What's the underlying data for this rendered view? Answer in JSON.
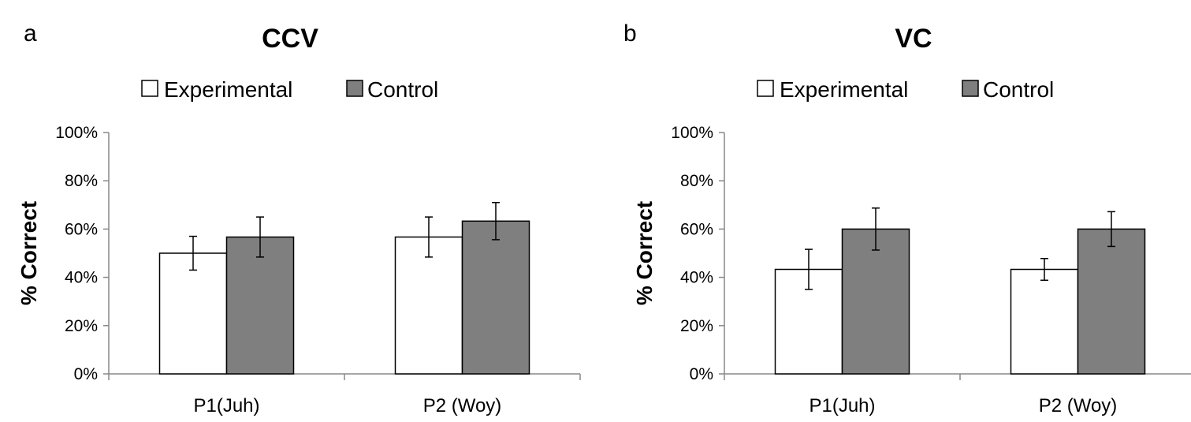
{
  "chart_data": [
    {
      "type": "bar",
      "panel_label": "a",
      "title": "CCV",
      "xlabel": "",
      "ylabel": "% Correct",
      "ylim": [
        0,
        100
      ],
      "yticks": [
        "0%",
        "20%",
        "40%",
        "60%",
        "80%",
        "100%"
      ],
      "categories": [
        "P1(Juh)",
        "P2 (Woy)"
      ],
      "legend_position": "top",
      "series": [
        {
          "name": "Experimental",
          "color": "#ffffff",
          "values": [
            50,
            56.7
          ],
          "error": [
            7,
            8.3
          ]
        },
        {
          "name": "Control",
          "color": "#7f7f7f",
          "values": [
            56.7,
            63.3
          ],
          "error": [
            8.3,
            7.7
          ]
        }
      ]
    },
    {
      "type": "bar",
      "panel_label": "b",
      "title": "VC",
      "xlabel": "",
      "ylabel": "% Correct",
      "ylim": [
        0,
        100
      ],
      "yticks": [
        "0%",
        "20%",
        "40%",
        "60%",
        "80%",
        "100%"
      ],
      "categories": [
        "P1(Juh)",
        "P2 (Woy)"
      ],
      "legend_position": "top",
      "series": [
        {
          "name": "Experimental",
          "color": "#ffffff",
          "values": [
            43.3,
            43.3
          ],
          "error": [
            8.3,
            4.5
          ]
        },
        {
          "name": "Control",
          "color": "#7f7f7f",
          "values": [
            60,
            60
          ],
          "error": [
            8.7,
            7.2
          ]
        }
      ]
    }
  ]
}
